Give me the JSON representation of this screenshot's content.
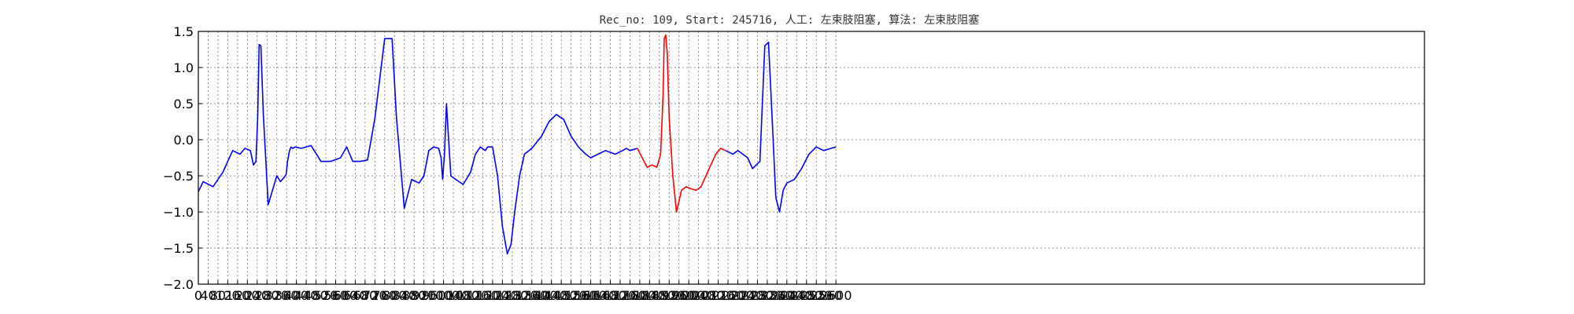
{
  "chart_data": {
    "type": "line",
    "title": "Rec_no: 109, Start: 245716, 人工: 左束肢阻塞, 算法: 左束肢阻塞",
    "xlabel": "",
    "ylabel": "",
    "ylim": [
      -2.0,
      1.5
    ],
    "xlim": [
      0,
      4000
    ],
    "grid": true,
    "y_ticks": [
      "1.5",
      "1.0",
      "0.5",
      "0.0",
      "−0.5",
      "−1.0",
      "−1.5",
      "−2.0"
    ],
    "y_tick_values": [
      1.5,
      1.0,
      0.5,
      0.0,
      -0.5,
      -1.0,
      -1.5,
      -2.0
    ],
    "x_ticks": [
      "0",
      "40",
      "80",
      "120",
      "160",
      "200",
      "240",
      "280",
      "320",
      "360",
      "400",
      "440",
      "480",
      "520",
      "560",
      "600",
      "640",
      "680",
      "720",
      "760",
      "800",
      "840",
      "880",
      "920",
      "960",
      "1000",
      "1040",
      "1080",
      "1120",
      "1160",
      "1200",
      "1240",
      "1280",
      "1320",
      "1360",
      "1400",
      "1440",
      "1480",
      "1520",
      "1560",
      "1600",
      "1640",
      "1680",
      "1720",
      "1760",
      "1800",
      "1840",
      "1880",
      "1920",
      "1960",
      "2000",
      "2040",
      "2080",
      "2120",
      "2160",
      "2200",
      "2240",
      "2280",
      "2320",
      "2360",
      "2400",
      "2440",
      "2480",
      "2520",
      "2560",
      "2600"
    ],
    "x_tick_values": [
      0,
      40,
      80,
      120,
      160,
      200,
      240,
      280,
      320,
      360,
      400,
      440,
      480,
      520,
      560,
      600,
      640,
      680,
      720,
      760,
      800,
      840,
      880,
      920,
      960,
      1000,
      1040,
      1080,
      1120,
      1160,
      1200,
      1240,
      1280,
      1320,
      1360,
      1400,
      1440,
      1480,
      1520,
      1560,
      1600,
      1640,
      1680,
      1720,
      1760,
      1800,
      1840,
      1880,
      1920,
      1960,
      2000,
      2040,
      2080,
      2120,
      2160,
      2200,
      2240,
      2280,
      2320,
      2360,
      2400,
      2440,
      2480,
      2520,
      2560,
      2600
    ],
    "series": [
      {
        "color": "#0000ff",
        "x": [
          0,
          20,
          60,
          100,
          140,
          170,
          190,
          212,
          225,
          235,
          242,
          248,
          255,
          265,
          285,
          320,
          335,
          350,
          358,
          364,
          372,
          378,
          385,
          395,
          420,
          460,
          500,
          540,
          580,
          605,
          630,
          660,
          690,
          720,
          760,
          790,
          808,
          840,
          870,
          900,
          920,
          940,
          960,
          980,
          990,
          996,
          1004,
          1012,
          1018,
          1030,
          1050,
          1080,
          1110,
          1130,
          1150,
          1170,
          1180,
          1200
        ],
        "y": [
          -0.72,
          -0.58,
          -0.65,
          -0.45,
          -0.15,
          -0.2,
          -0.12,
          -0.15,
          -0.35,
          -0.3,
          0.3,
          1.32,
          1.3,
          0.35,
          -0.9,
          -0.5,
          -0.58,
          -0.52,
          -0.48,
          -0.3,
          -0.15,
          -0.1,
          -0.12,
          -0.1,
          -0.12,
          -0.08,
          -0.3,
          -0.3,
          -0.25,
          -0.1,
          -0.3,
          -0.3,
          -0.28,
          0.3,
          1.4,
          1.4,
          0.3,
          -0.95,
          -0.55,
          -0.6,
          -0.5,
          -0.15,
          -0.1,
          -0.12,
          -0.25,
          -0.55,
          -0.2,
          0.5,
          0.15,
          -0.5,
          -0.55,
          -0.62,
          -0.45,
          -0.2,
          -0.1,
          -0.15,
          -0.1,
          -0.1
        ]
      },
      {
        "color": "#0000ff",
        "x": [
          1200,
          1220,
          1240,
          1260,
          1275,
          1290,
          1310,
          1330,
          1360,
          1400,
          1430,
          1460,
          1490,
          1520,
          1550,
          1580,
          1600,
          1630,
          1660,
          1700,
          1730,
          1745,
          1760,
          1790
        ],
        "y": [
          -0.1,
          -0.5,
          -1.2,
          -1.58,
          -1.45,
          -1.0,
          -0.5,
          -0.2,
          -0.12,
          0.05,
          0.25,
          0.35,
          0.28,
          0.05,
          -0.1,
          -0.2,
          -0.25,
          -0.2,
          -0.15,
          -0.2,
          -0.15,
          -0.12,
          -0.15,
          -0.12
        ]
      },
      {
        "color": "#ff0000",
        "x": [
          1790,
          1810,
          1830,
          1850,
          1870,
          1885,
          1895,
          1900,
          1906,
          1912,
          1920,
          1935,
          1950,
          1970,
          1990,
          2010,
          2030,
          2050,
          2070,
          2090,
          2110,
          2130,
          2150
        ],
        "y": [
          -0.12,
          -0.25,
          -0.38,
          -0.35,
          -0.38,
          -0.2,
          0.6,
          1.4,
          1.45,
          1.2,
          0.3,
          -0.5,
          -1.0,
          -0.7,
          -0.65,
          -0.68,
          -0.7,
          -0.65,
          -0.5,
          -0.35,
          -0.2,
          -0.12,
          -0.15
        ]
      },
      {
        "color": "#0000ff",
        "x": [
          2150,
          2180,
          2200,
          2220,
          2240,
          2260,
          2275,
          2290,
          2300,
          2310,
          2325,
          2340,
          2355,
          2370,
          2385,
          2400,
          2430,
          2460,
          2490,
          2520,
          2550,
          2580,
          2600
        ],
        "y": [
          -0.15,
          -0.2,
          -0.15,
          -0.2,
          -0.25,
          -0.4,
          -0.35,
          -0.3,
          0.5,
          1.3,
          1.35,
          0.3,
          -0.8,
          -1.0,
          -0.7,
          -0.6,
          -0.55,
          -0.4,
          -0.2,
          -0.1,
          -0.15,
          -0.12,
          -0.1
        ]
      }
    ]
  }
}
